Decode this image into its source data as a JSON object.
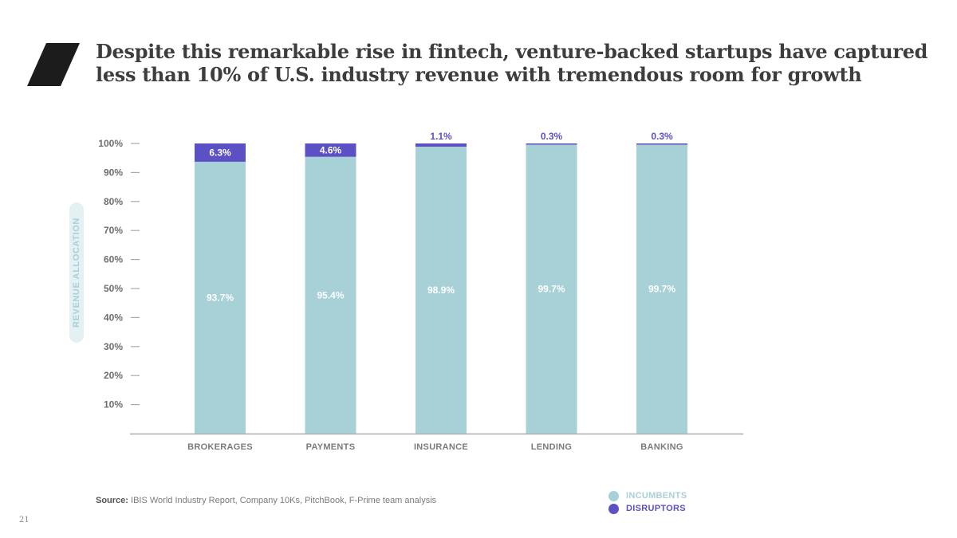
{
  "slide": {
    "title_line1": "Despite this remarkable rise in fintech, venture-backed startups have captured",
    "title_line2": "less than 10% of U.S. industry revenue with tremendous room for growth",
    "source_prefix": "Source:",
    "source_text": "IBIS World Industry Report, Company 10Ks, PitchBook, F-Prime team analysis",
    "page_number": "21"
  },
  "colors": {
    "incumbents": "#a8d0d7",
    "disruptors": "#5b51c4",
    "axis": "#aaaaaa",
    "logo": "#1c1c1c"
  },
  "chart_data": {
    "type": "bar",
    "stacked": true,
    "title": "",
    "xlabel": "",
    "ylabel": "REVENUE ALLOCATION",
    "ylim": [
      0,
      100
    ],
    "yticks": [
      10,
      20,
      30,
      40,
      50,
      60,
      70,
      80,
      90,
      100
    ],
    "ytick_labels": [
      "10%",
      "20%",
      "30%",
      "40%",
      "50%",
      "60%",
      "70%",
      "80%",
      "90%",
      "100%"
    ],
    "categories": [
      "BROKERAGES",
      "PAYMENTS",
      "INSURANCE",
      "LENDING",
      "BANKING"
    ],
    "series": [
      {
        "name": "INCUMBENTS",
        "values": [
          93.7,
          95.4,
          98.9,
          99.7,
          99.7
        ],
        "labels": [
          "93.7%",
          "95.4%",
          "98.9%",
          "99.7%",
          "99.7%"
        ]
      },
      {
        "name": "DISRUPTORS",
        "values": [
          6.3,
          4.6,
          1.1,
          0.3,
          0.3
        ],
        "labels": [
          "6.3%",
          "4.6%",
          "1.1%",
          "0.3%",
          "0.3%"
        ]
      }
    ],
    "legend": [
      "INCUMBENTS",
      "DISRUPTORS"
    ],
    "legend_position": "bottom-right"
  }
}
